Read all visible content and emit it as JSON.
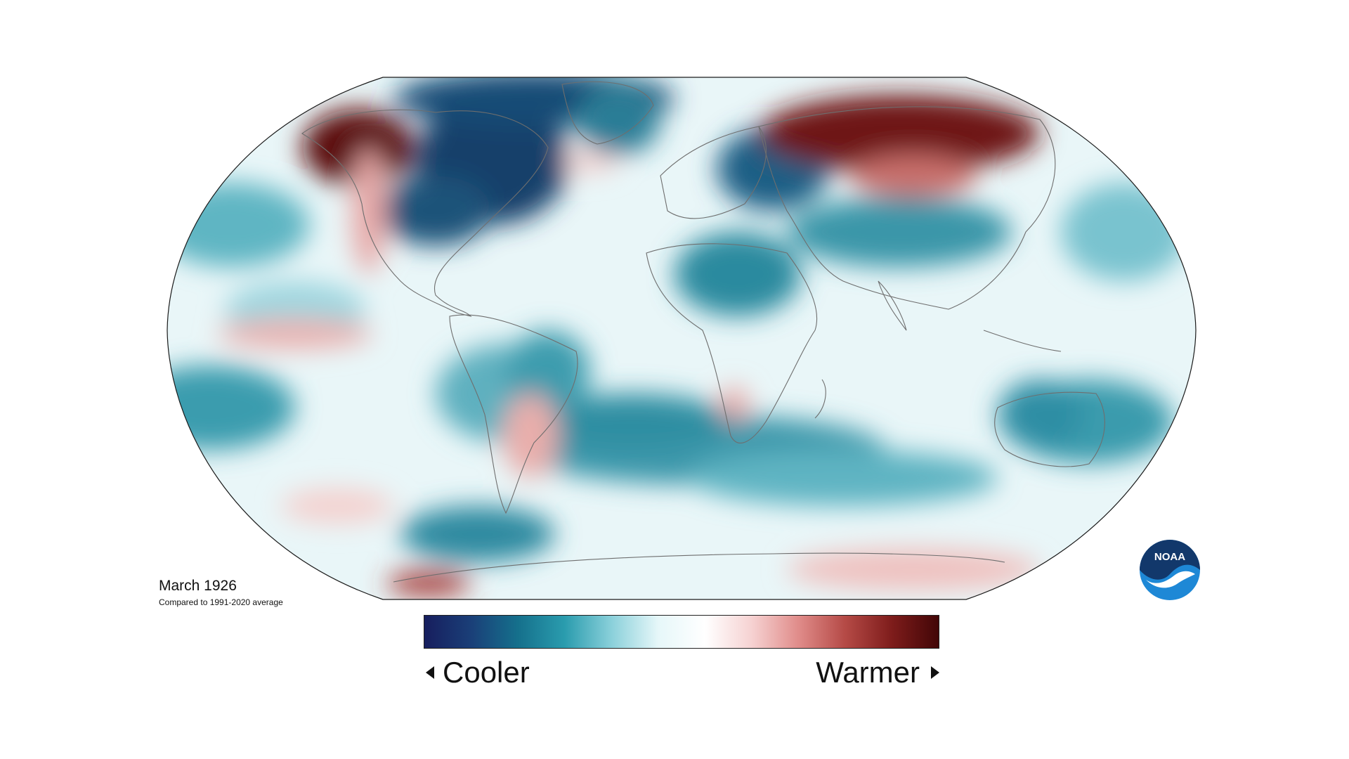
{
  "caption": {
    "title": "March 1926",
    "subtitle": "Compared to 1991-2020 average"
  },
  "legend": {
    "cooler_label": "Cooler",
    "warmer_label": "Warmer",
    "gradient_colors": [
      "#171e5e",
      "#1a3f78",
      "#15708c",
      "#2a9cae",
      "#8ad0da",
      "#e6f7f9",
      "#ffffff",
      "#f6d2d2",
      "#e08c8a",
      "#b54a46",
      "#7e1c1b",
      "#420607"
    ]
  },
  "logo": {
    "text": "NOAA",
    "colors": {
      "dark_blue": "#12386b",
      "light_blue": "#1e88d6",
      "white": "#ffffff"
    }
  },
  "map": {
    "projection": "robinson",
    "colors": {
      "very_cold": "#123f6b",
      "cold": "#1e6f86",
      "cool": "#3e9fb1",
      "slightly_cool": "#9fd6df",
      "neutral": "#ecf8fa",
      "slightly_warm": "#f4cccb",
      "warm": "#c55a58",
      "very_warm": "#5a0c0c",
      "border": "#1a1a1a",
      "coastline": "#6e6e6e"
    }
  }
}
